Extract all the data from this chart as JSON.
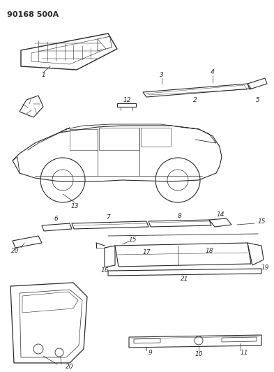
{
  "title_code": "90168 500A",
  "bg_color": "#ffffff",
  "fig_width": 3.93,
  "fig_height": 5.33,
  "dpi": 100,
  "gray": "#2a2a2a",
  "lw": 0.7
}
